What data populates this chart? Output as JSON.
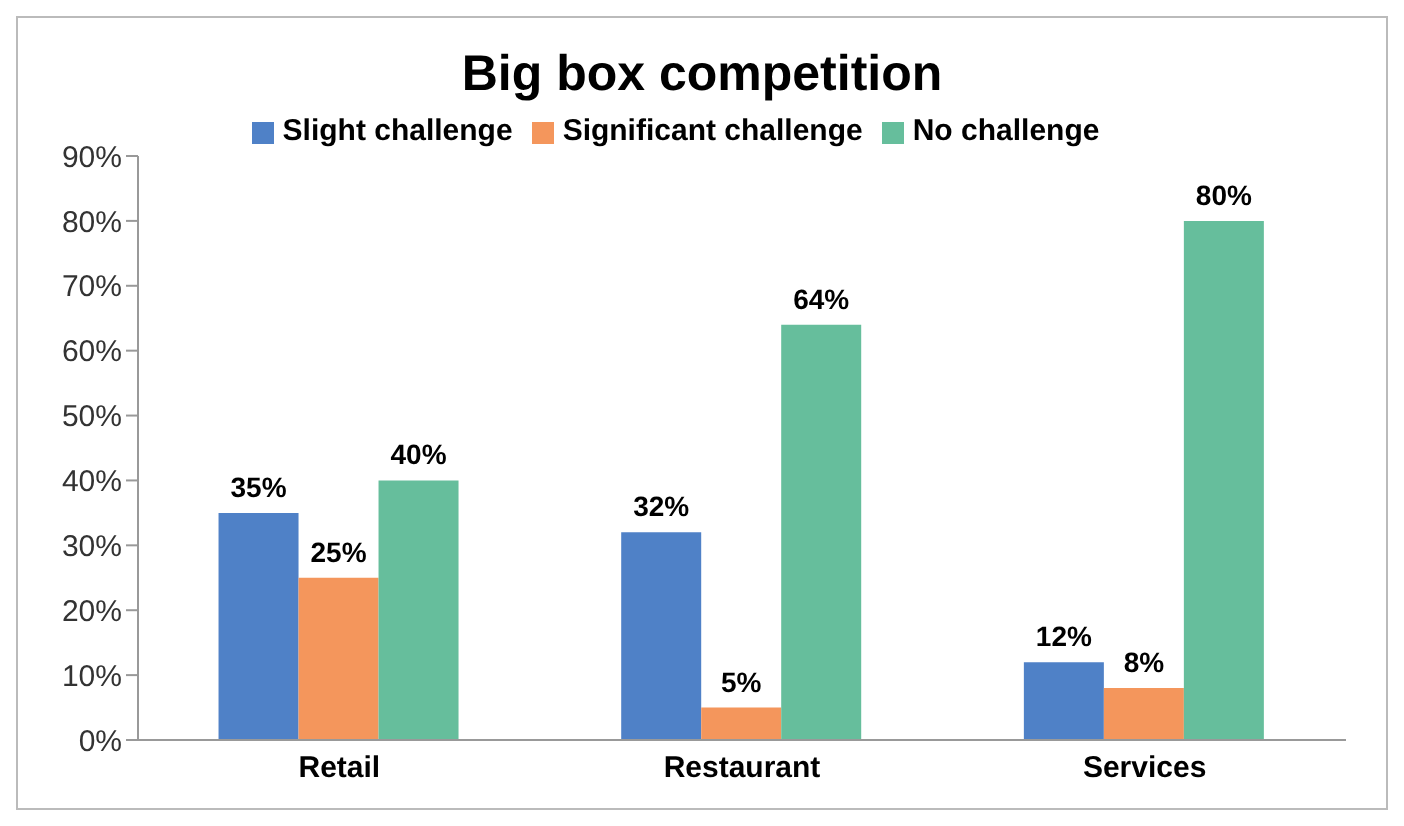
{
  "chart_data": {
    "type": "bar",
    "title": "Big box competition",
    "categories": [
      "Retail",
      "Restaurant",
      "Services"
    ],
    "series": [
      {
        "name": "Slight challenge",
        "color": "#4f81c7",
        "values": [
          35,
          32,
          12
        ],
        "value_labels": [
          "35%",
          "32%",
          "12%"
        ]
      },
      {
        "name": "Significant challenge",
        "color": "#f4965c",
        "values": [
          25,
          5,
          8
        ],
        "value_labels": [
          "25%",
          "5%",
          "8%"
        ]
      },
      {
        "name": "No challenge",
        "color": "#66be9c",
        "values": [
          40,
          64,
          80
        ],
        "value_labels": [
          "40%",
          "64%",
          "80%"
        ]
      }
    ],
    "ylim": [
      0,
      90
    ],
    "yticks": [
      {
        "value": 0,
        "label": "0%"
      },
      {
        "value": 10,
        "label": "10%"
      },
      {
        "value": 20,
        "label": "20%"
      },
      {
        "value": 30,
        "label": "30%"
      },
      {
        "value": 40,
        "label": "40%"
      },
      {
        "value": 50,
        "label": "50%"
      },
      {
        "value": 60,
        "label": "60%"
      },
      {
        "value": 70,
        "label": "70%"
      },
      {
        "value": 80,
        "label": "80%"
      },
      {
        "value": 90,
        "label": "90%"
      }
    ],
    "grid": false,
    "legend": "top"
  }
}
